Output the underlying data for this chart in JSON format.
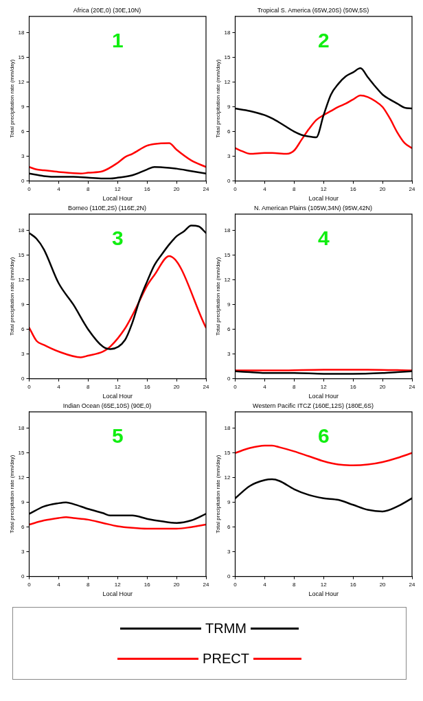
{
  "chart_data": [
    {
      "type": "line",
      "title": "Africa (20E,0) (30E,10N)",
      "xlabel": "Local Hour",
      "ylabel": "Total precipitation rate (mm/day)",
      "annotations": [
        "1"
      ],
      "xlim": [
        0,
        24
      ],
      "xticks": [
        0,
        4,
        8,
        12,
        16,
        20,
        24
      ],
      "ylim": [
        0,
        20
      ],
      "yticks": [
        0,
        3,
        6,
        9,
        12,
        15,
        18
      ],
      "marker": "none",
      "series": [
        {
          "color": "#000000",
          "x": [
            0,
            2,
            4,
            6,
            8,
            10,
            11,
            12,
            14,
            16,
            17,
            19,
            20,
            22,
            24
          ],
          "values": [
            0.9,
            0.6,
            0.5,
            0.5,
            0.4,
            0.3,
            0.3,
            0.4,
            0.7,
            1.4,
            1.7,
            1.6,
            1.5,
            1.2,
            0.9
          ]
        },
        {
          "color": "#ff0000",
          "x": [
            0,
            1,
            2,
            4,
            7,
            8,
            10,
            12,
            13,
            14,
            16,
            17,
            19,
            20,
            22,
            24
          ],
          "values": [
            1.7,
            1.4,
            1.3,
            1.1,
            0.9,
            1.0,
            1.2,
            2.2,
            2.9,
            3.3,
            4.3,
            4.5,
            4.6,
            3.8,
            2.5,
            1.7
          ]
        }
      ]
    },
    {
      "type": "line",
      "title": "Tropical S. America (65W,20S) (50W,5S)",
      "xlabel": "Local Hour",
      "ylabel": "Total precipitation rate (mm/day)",
      "annotations": [
        "2"
      ],
      "xlim": [
        0,
        24
      ],
      "xticks": [
        0,
        4,
        8,
        12,
        16,
        20,
        24
      ],
      "ylim": [
        0,
        20
      ],
      "yticks": [
        0,
        3,
        6,
        9,
        12,
        15,
        18
      ],
      "marker": "none",
      "series": [
        {
          "color": "#000000",
          "x": [
            0,
            2,
            4,
            5,
            6,
            8,
            9,
            10,
            11,
            12,
            13,
            14,
            15,
            16,
            17,
            18,
            19,
            20,
            21,
            22,
            23,
            24
          ],
          "values": [
            8.8,
            8.5,
            8.0,
            7.6,
            7.1,
            6.0,
            5.6,
            5.4,
            5.3,
            8.0,
            10.5,
            11.8,
            12.7,
            13.2,
            13.7,
            12.6,
            11.5,
            10.5,
            9.9,
            9.4,
            8.9,
            8.8
          ]
        },
        {
          "color": "#ff0000",
          "x": [
            0,
            1,
            2,
            4,
            5,
            7,
            8,
            9,
            10,
            11,
            12,
            13,
            14,
            15,
            16,
            17,
            18,
            19,
            20,
            21,
            22,
            23,
            24
          ],
          "values": [
            4.0,
            3.6,
            3.3,
            3.4,
            3.4,
            3.3,
            3.7,
            5.0,
            6.3,
            7.4,
            8.0,
            8.5,
            9.0,
            9.4,
            9.9,
            10.4,
            10.2,
            9.7,
            9.0,
            7.6,
            5.9,
            4.6,
            4.0
          ]
        }
      ]
    },
    {
      "type": "line",
      "title": "Borneo (110E,2S) (116E,2N)",
      "xlabel": "Local Hour",
      "ylabel": "Total precipitation rate (mm/day)",
      "annotations": [
        "3"
      ],
      "xlim": [
        0,
        24
      ],
      "xticks": [
        0,
        4,
        8,
        12,
        16,
        20,
        24
      ],
      "ylim": [
        0,
        20
      ],
      "yticks": [
        0,
        3,
        6,
        9,
        12,
        15,
        18
      ],
      "marker": "none",
      "series": [
        {
          "color": "#000000",
          "x": [
            0,
            1,
            2,
            4,
            6,
            8,
            10,
            11,
            13,
            14,
            15,
            16,
            17,
            18,
            19,
            20,
            21,
            22,
            23,
            24
          ],
          "values": [
            17.7,
            17.0,
            15.7,
            11.6,
            9.0,
            6.0,
            3.9,
            3.6,
            4.7,
            6.8,
            9.6,
            11.8,
            13.8,
            15.1,
            16.3,
            17.3,
            17.9,
            18.6,
            18.5,
            17.7
          ]
        },
        {
          "color": "#ff0000",
          "x": [
            0,
            1,
            2,
            4,
            7,
            8,
            10,
            11,
            13,
            14,
            15,
            16,
            17,
            19,
            24
          ],
          "values": [
            6.2,
            4.6,
            4.1,
            3.3,
            2.6,
            2.8,
            3.3,
            3.9,
            6.1,
            7.7,
            9.5,
            11.3,
            12.6,
            14.9,
            6.2
          ]
        }
      ]
    },
    {
      "type": "line",
      "title": "N. American Plains (105W,34N) (95W,42N)",
      "xlabel": "Local Hour",
      "ylabel": "Total precipitation rate (mm/day)",
      "annotations": [
        "4"
      ],
      "xlim": [
        0,
        24
      ],
      "xticks": [
        0,
        4,
        8,
        12,
        16,
        20,
        24
      ],
      "ylim": [
        0,
        20
      ],
      "yticks": [
        0,
        3,
        6,
        9,
        12,
        15,
        18
      ],
      "marker": "none",
      "series": [
        {
          "color": "#000000",
          "x": [
            0,
            2,
            4,
            8,
            12,
            16,
            20,
            22,
            24
          ],
          "values": [
            0.9,
            0.8,
            0.7,
            0.7,
            0.6,
            0.6,
            0.7,
            0.8,
            0.9
          ]
        },
        {
          "color": "#ff0000",
          "x": [
            0,
            6,
            12,
            18,
            24
          ],
          "values": [
            1.0,
            1.0,
            1.1,
            1.1,
            1.0
          ]
        }
      ]
    },
    {
      "type": "line",
      "title": "Indian Ocean (65E,10S) (90E,0)",
      "xlabel": "Local Hour",
      "ylabel": "Total precipitation rate (mm/day)",
      "annotations": [
        "5"
      ],
      "xlim": [
        0,
        24
      ],
      "xticks": [
        0,
        4,
        8,
        12,
        16,
        20,
        24
      ],
      "ylim": [
        0,
        20
      ],
      "yticks": [
        0,
        3,
        6,
        9,
        12,
        15,
        18
      ],
      "marker": "none",
      "series": [
        {
          "color": "#000000",
          "x": [
            0,
            2,
            4,
            5,
            6,
            8,
            10,
            11,
            12,
            14,
            16,
            18,
            20,
            22,
            24
          ],
          "values": [
            7.6,
            8.5,
            8.9,
            9.0,
            8.8,
            8.2,
            7.7,
            7.4,
            7.4,
            7.4,
            7.0,
            6.7,
            6.5,
            6.8,
            7.6
          ]
        },
        {
          "color": "#ff0000",
          "x": [
            0,
            2,
            4,
            5,
            6,
            8,
            10,
            12,
            14,
            16,
            18,
            20,
            22,
            24
          ],
          "values": [
            6.3,
            6.8,
            7.1,
            7.2,
            7.1,
            6.9,
            6.5,
            6.1,
            5.9,
            5.8,
            5.8,
            5.8,
            6.0,
            6.3
          ]
        }
      ]
    },
    {
      "type": "line",
      "title": "Western Pacific ITCZ (160E,12S) (180E,6S)",
      "xlabel": "Local Hour",
      "ylabel": "Total precipitation rate (mm/day)",
      "annotations": [
        "6"
      ],
      "xlim": [
        0,
        24
      ],
      "xticks": [
        0,
        4,
        8,
        12,
        16,
        20,
        24
      ],
      "ylim": [
        0,
        20
      ],
      "yticks": [
        0,
        3,
        6,
        9,
        12,
        15,
        18
      ],
      "marker": "none",
      "legend": "bottom",
      "series": [
        {
          "name": "TRMM",
          "color": "#000000",
          "x": [
            0,
            2,
            4,
            5,
            6,
            8,
            10,
            12,
            14,
            16,
            18,
            20,
            22,
            24
          ],
          "values": [
            9.5,
            11.0,
            11.7,
            11.8,
            11.6,
            10.6,
            9.9,
            9.5,
            9.3,
            8.7,
            8.1,
            7.9,
            8.5,
            9.5
          ]
        },
        {
          "name": "PRECT",
          "color": "#ff0000",
          "x": [
            0,
            2,
            4,
            5,
            6,
            8,
            10,
            12,
            14,
            16,
            18,
            20,
            22,
            24
          ],
          "values": [
            15.0,
            15.6,
            15.9,
            15.9,
            15.7,
            15.2,
            14.6,
            14.0,
            13.6,
            13.5,
            13.6,
            13.9,
            14.4,
            15.0
          ]
        }
      ]
    }
  ]
}
